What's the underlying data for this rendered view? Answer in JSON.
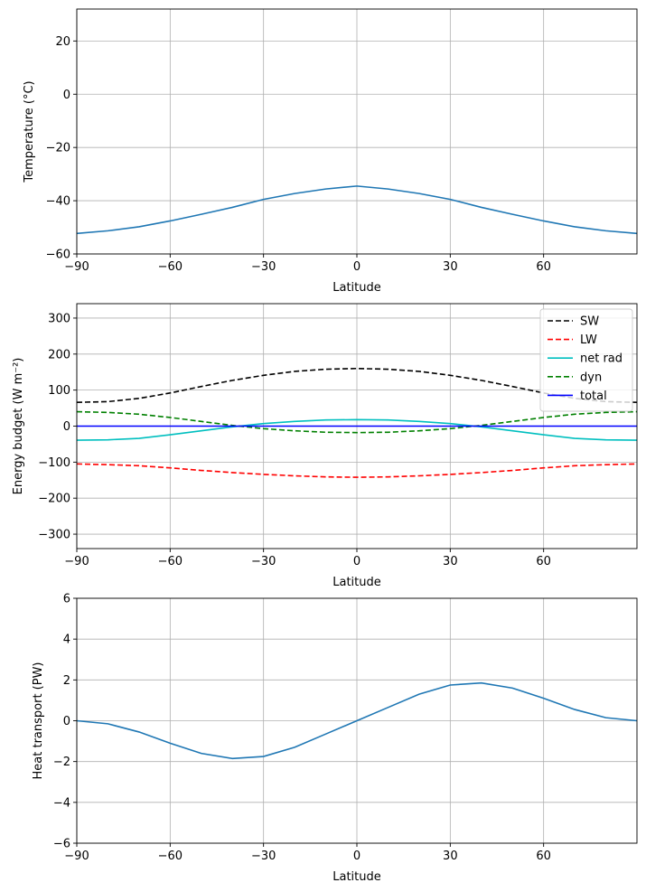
{
  "chart_data": [
    {
      "type": "line",
      "title": "",
      "xlabel": "Latitude",
      "ylabel": "Temperature (°C)",
      "xlim": [
        -90,
        90
      ],
      "ylim": [
        -60,
        32
      ],
      "xticks": [
        -90,
        -60,
        -30,
        0,
        30,
        60
      ],
      "xtick_labels": [
        "−90",
        "−60",
        "−30",
        "0",
        "30",
        "60"
      ],
      "yticks": [
        -60,
        -40,
        -20,
        0,
        20
      ],
      "ytick_labels": [
        "−60",
        "−40",
        "−20",
        "0",
        "20"
      ],
      "grid": true,
      "x": [
        -90,
        -80,
        -70,
        -60,
        -50,
        -40,
        -30,
        -20,
        -10,
        0,
        10,
        20,
        30,
        40,
        50,
        60,
        70,
        80,
        90
      ],
      "series": [
        {
          "color": "#1f77b4",
          "dash": "solid",
          "values": [
            -52.3,
            -51.3,
            -49.8,
            -47.6,
            -45.1,
            -42.5,
            -39.5,
            -37.3,
            -35.6,
            -34.5,
            -35.6,
            -37.3,
            -39.5,
            -42.5,
            -45.1,
            -47.6,
            -49.8,
            -51.3,
            -52.3
          ]
        }
      ]
    },
    {
      "type": "line",
      "title": "",
      "xlabel": "Latitude",
      "ylabel": "Energy budget (W m⁻²)",
      "xlim": [
        -90,
        90
      ],
      "ylim": [
        -340,
        340
      ],
      "xticks": [
        -90,
        -60,
        -30,
        0,
        30,
        60
      ],
      "xtick_labels": [
        "−90",
        "−60",
        "−30",
        "0",
        "30",
        "60"
      ],
      "yticks": [
        -300,
        -200,
        -100,
        0,
        100,
        200,
        300
      ],
      "ytick_labels": [
        "−300",
        "−200",
        "−100",
        "0",
        "100",
        "200",
        "300"
      ],
      "grid": true,
      "legend_position": "top-right",
      "x": [
        -90,
        -80,
        -70,
        -60,
        -50,
        -40,
        -30,
        -20,
        -10,
        0,
        10,
        20,
        30,
        40,
        50,
        60,
        70,
        80,
        90
      ],
      "series": [
        {
          "name": "SW",
          "color": "#000000",
          "dash": "dashed",
          "values": [
            66,
            68,
            77,
            92,
            110,
            127,
            141,
            152,
            158,
            160,
            158,
            152,
            141,
            127,
            110,
            92,
            77,
            68,
            66
          ]
        },
        {
          "name": "LW",
          "color": "#ff0000",
          "dash": "dashed",
          "values": [
            -105,
            -107,
            -110,
            -116,
            -123,
            -129,
            -134,
            -138,
            -141,
            -142,
            -141,
            -138,
            -134,
            -129,
            -123,
            -116,
            -110,
            -107,
            -105
          ]
        },
        {
          "name": "net rad",
          "color": "#00bfbf",
          "dash": "solid",
          "values": [
            -39,
            -38,
            -34,
            -24,
            -13,
            -2,
            7,
            13,
            17,
            18,
            17,
            13,
            7,
            -2,
            -13,
            -24,
            -34,
            -38,
            -39
          ]
        },
        {
          "name": "dyn",
          "color": "#008000",
          "dash": "dashed",
          "values": [
            40,
            38,
            33,
            24,
            13,
            2,
            -7,
            -13,
            -17,
            -18,
            -17,
            -13,
            -7,
            2,
            13,
            24,
            33,
            38,
            40
          ]
        },
        {
          "name": "total",
          "color": "#0000ff",
          "dash": "solid",
          "values": [
            0,
            0,
            0,
            0,
            0,
            0,
            0,
            0,
            0,
            0,
            0,
            0,
            0,
            0,
            0,
            0,
            0,
            0,
            0
          ]
        }
      ]
    },
    {
      "type": "line",
      "title": "",
      "xlabel": "Latitude",
      "ylabel": "Heat transport (PW)",
      "xlim": [
        -90,
        90
      ],
      "ylim": [
        -6,
        6
      ],
      "xticks": [
        -90,
        -60,
        -30,
        0,
        30,
        60
      ],
      "xtick_labels": [
        "−90",
        "−60",
        "−30",
        "0",
        "30",
        "60"
      ],
      "yticks": [
        -6,
        -4,
        -2,
        0,
        2,
        4,
        6
      ],
      "ytick_labels": [
        "−6",
        "−4",
        "−2",
        "0",
        "2",
        "4",
        "6"
      ],
      "grid": true,
      "x": [
        -90,
        -80,
        -70,
        -60,
        -50,
        -40,
        -30,
        -20,
        -10,
        0,
        10,
        20,
        30,
        40,
        50,
        60,
        70,
        80,
        90
      ],
      "series": [
        {
          "color": "#1f77b4",
          "dash": "solid",
          "values": [
            0,
            -0.15,
            -0.55,
            -1.1,
            -1.6,
            -1.85,
            -1.75,
            -1.3,
            -0.65,
            0,
            0.65,
            1.3,
            1.75,
            1.85,
            1.6,
            1.1,
            0.55,
            0.15,
            0
          ]
        }
      ]
    }
  ]
}
